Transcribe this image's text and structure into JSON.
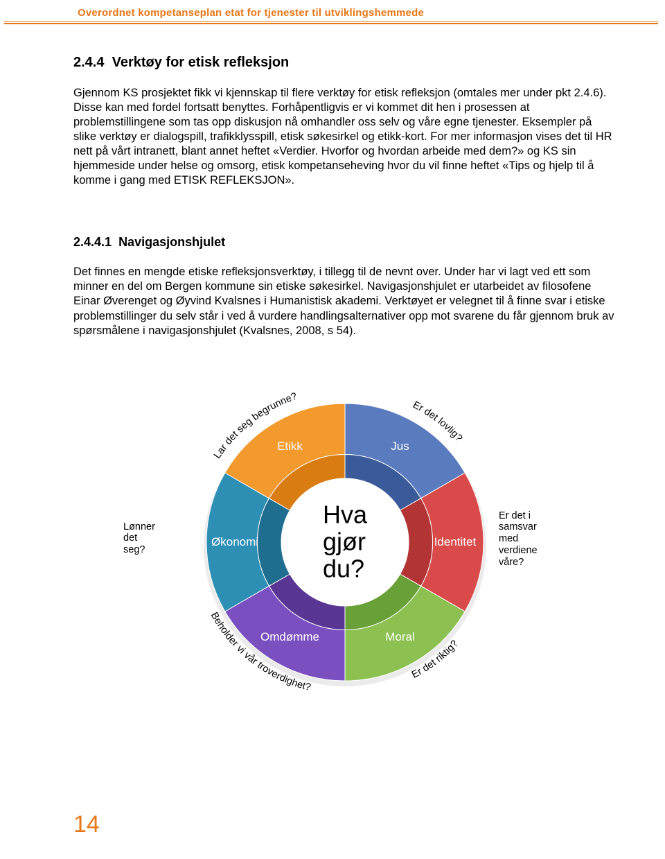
{
  "header": {
    "title": "Overordnet kompetanseplan etat for tjenester til utviklingshemmede",
    "color": "#e67817"
  },
  "section1": {
    "number": "2.4.4",
    "title": "Verktøy for etisk refleksjon",
    "body": "Gjennom KS prosjektet fikk vi kjennskap til flere verktøy for etisk refleksjon (omtales mer under pkt 2.4.6). Disse kan med fordel fortsatt benyttes. Forhåpentligvis er vi kommet dit hen i prosessen at problemstillingene som tas opp diskusjon nå omhandler oss selv og våre egne tjenester. Eksempler på slike verktøy er dialogspill, trafikklysspill, etisk søkesirkel og etikk-kort. For mer informasjon vises det til HR nett på vårt intranett, blant annet heftet «Verdier. Hvorfor og hvordan arbeide med dem?» og KS sin hjemmeside under helse og omsorg, etisk kompetanseheving hvor du vil finne heftet «Tips og hjelp til å komme i gang med ETISK REFLEKSJON»."
  },
  "section2": {
    "number": "2.4.4.1",
    "title": "Navigasjonshjulet",
    "body": "Det finnes en mengde etiske refleksjonsverktøy, i tillegg til de nevnt over. Under har vi lagt ved ett som minner en del om Bergen kommune sin etiske søkesirkel. Navigasjonshjulet er utarbeidet av filosofene Einar Øverenget og Øyvind Kvalsnes i Humanistisk akademi. Verktøyet er velegnet til å finne svar i etiske problemstillinger du selv står i ved å vurdere handlingsalternativer opp mot svarene du får gjennom bruk av spørsmålene i navigasjonshjulet (Kvalsnes, 2008, s 54)."
  },
  "wheel": {
    "type": "pie",
    "center_text": "Hva gjør du?",
    "center_fontsize": 36,
    "background_color": "#ffffff",
    "inner_radius": 92,
    "outer_radius": 200,
    "segments": [
      {
        "label": "Jus",
        "color_light": "#5b7bbf",
        "color_dark": "#3a5a99",
        "question": "Er det lovlig?"
      },
      {
        "label": "Identitet",
        "color_light": "#d94b4b",
        "color_dark": "#b23434",
        "question": "Er det i samsvar med verdiene våre?"
      },
      {
        "label": "Moral",
        "color_light": "#8cc152",
        "color_dark": "#6aa038",
        "question": "Er det riktig?"
      },
      {
        "label": "Omdømme",
        "color_light": "#7a4fbf",
        "color_dark": "#5a3694",
        "question": "Beholder vi vår troverdighet?"
      },
      {
        "label": "Økonomi",
        "color_light": "#2e8fb5",
        "color_dark": "#1f6d8f",
        "question": "Lønner det seg?"
      },
      {
        "label": "Etikk",
        "color_light": "#f29a2e",
        "color_dark": "#d97c12",
        "question": "Lar det seg begrunne?"
      }
    ]
  },
  "page_number": "14"
}
